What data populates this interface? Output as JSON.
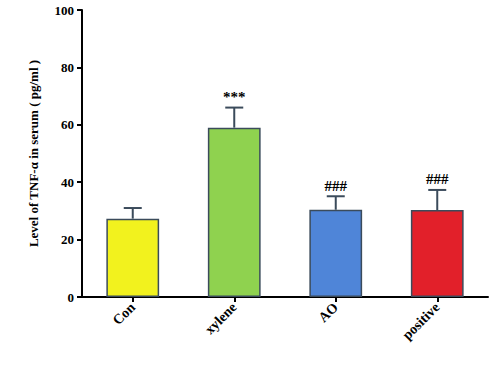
{
  "chart_data": {
    "type": "bar",
    "y_label": "Level of TNF-α in serum ( pg/ml )",
    "categories": [
      "Con",
      "xylene",
      "AO",
      "positive"
    ],
    "values": [
      27.3,
      59,
      30.4,
      30.3
    ],
    "errors": [
      3.7,
      7,
      4.7,
      7
    ],
    "significance": [
      null,
      "***",
      "###",
      "###"
    ],
    "colors": [
      "#f2f21e",
      "#8fd24f",
      "#4f85d8",
      "#e2202a"
    ],
    "ylim": [
      0,
      100
    ],
    "yticks": [
      0,
      20,
      40,
      60,
      80,
      100
    ],
    "grid": false
  }
}
